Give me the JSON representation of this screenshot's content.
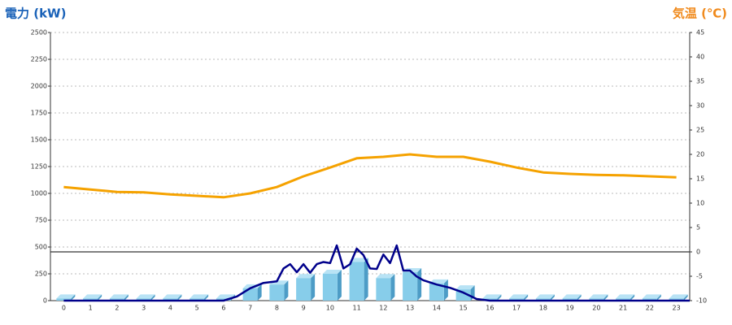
{
  "chart_data": {
    "type": "combo",
    "y_label": "電力 (kW)",
    "y2_label": "気温 (℃)",
    "categories": [
      "0",
      "1",
      "2",
      "3",
      "4",
      "5",
      "6",
      "7",
      "8",
      "9",
      "10",
      "11",
      "12",
      "13",
      "14",
      "15",
      "16",
      "17",
      "18",
      "19",
      "20",
      "21",
      "22",
      "23"
    ],
    "ylim": [
      0,
      2500
    ],
    "yticks": [
      0,
      250,
      500,
      750,
      1000,
      1250,
      1500,
      1750,
      2000,
      2250,
      2500
    ],
    "y2lim": [
      -10,
      45
    ],
    "y2ticks": [
      -10,
      -5,
      0,
      5,
      10,
      15,
      20,
      25,
      30,
      35,
      40,
      45
    ],
    "grid": true,
    "series": [
      {
        "type": "bar",
        "color": "#87cdea",
        "values": [
          20,
          20,
          20,
          20,
          20,
          20,
          20,
          115,
          150,
          210,
          250,
          360,
          210,
          265,
          160,
          105,
          20,
          20,
          20,
          20,
          20,
          20,
          20,
          20
        ]
      },
      {
        "type": "line",
        "color": "#00008b",
        "x": [
          0,
          1,
          2,
          3,
          4,
          5,
          6,
          6.5,
          7,
          7.5,
          8,
          8.25,
          8.5,
          8.75,
          9,
          9.25,
          9.5,
          9.75,
          10,
          10.25,
          10.5,
          10.75,
          11,
          11.25,
          11.5,
          11.75,
          12,
          12.25,
          12.5,
          12.75,
          13,
          13.25,
          13.5,
          14,
          14.5,
          15,
          15.5,
          16,
          17,
          18,
          19,
          20,
          21,
          22,
          23,
          23.5
        ],
        "values": [
          0,
          0,
          0,
          0,
          0,
          0,
          0,
          38,
          115,
          165,
          180,
          300,
          340,
          265,
          340,
          260,
          340,
          360,
          350,
          515,
          300,
          340,
          485,
          425,
          300,
          295,
          430,
          350,
          515,
          280,
          280,
          225,
          190,
          150,
          120,
          75,
          15,
          0,
          0,
          0,
          0,
          0,
          0,
          0,
          0,
          0
        ]
      },
      {
        "type": "line",
        "axis": "y2",
        "color": "#f5a200",
        "values": [
          13.3,
          12.8,
          12.3,
          12.2,
          11.8,
          11.5,
          11.2,
          12,
          13.3,
          15.5,
          17.3,
          19.2,
          19.5,
          20,
          19.5,
          19.5,
          18.5,
          17.3,
          16.3,
          16,
          15.8,
          15.7,
          15.5,
          15.3
        ]
      }
    ]
  }
}
